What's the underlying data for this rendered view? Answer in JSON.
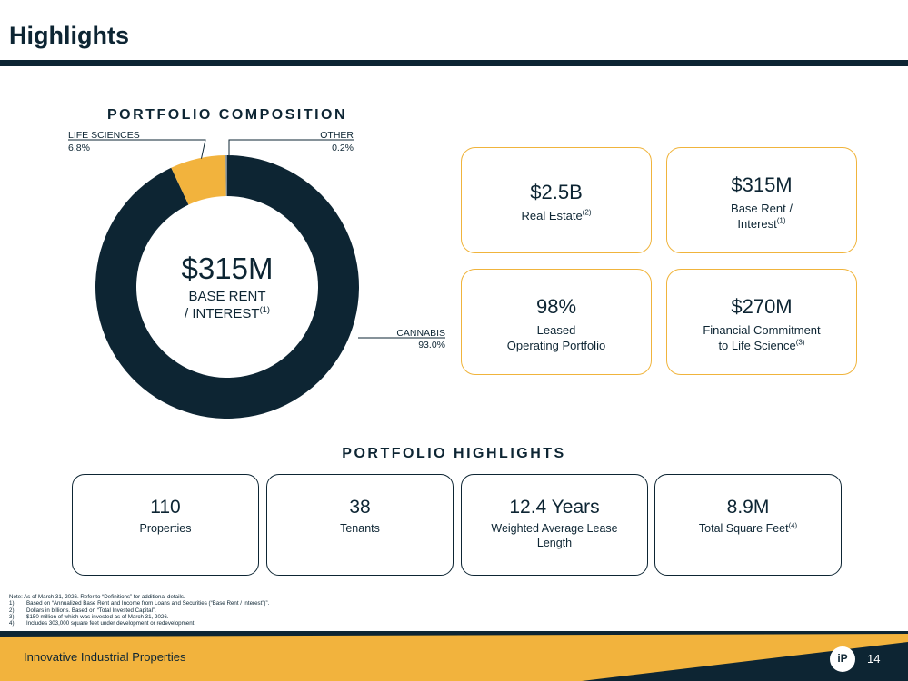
{
  "page": {
    "title": "Highlights"
  },
  "composition": {
    "heading": "PORTFOLIO COMPOSITION",
    "center_value": "$315M",
    "center_line1": "BASE RENT",
    "center_line2": "/ INTEREST",
    "center_sup": "(1)"
  },
  "chart_data": {
    "type": "pie",
    "style": "donut",
    "categories": [
      "CANNABIS",
      "LIFE SCIENCES",
      "OTHER"
    ],
    "values": [
      93.0,
      6.8,
      0.2
    ],
    "labels": [
      "93.0%",
      "6.8%",
      "0.2%"
    ],
    "colors": [
      "#0d2533",
      "#f2b33d",
      "#7a8a95"
    ]
  },
  "stats": [
    {
      "value": "$2.5B",
      "line1": "Real Estate",
      "line2": "",
      "sup": "(2)"
    },
    {
      "value": "$315M",
      "line1": "Base Rent /",
      "line2": "Interest",
      "sup": "(1)"
    },
    {
      "value": "98%",
      "line1": "Leased",
      "line2": "Operating Portfolio",
      "sup": ""
    },
    {
      "value": "$270M",
      "line1": "Financial Commitment",
      "line2": "to Life Science",
      "sup": "(3)"
    }
  ],
  "highlights": {
    "heading": "PORTFOLIO HIGHLIGHTS",
    "items": [
      {
        "value": "110",
        "line1": "Properties",
        "line2": "",
        "sup": ""
      },
      {
        "value": "38",
        "line1": "Tenants",
        "line2": "",
        "sup": ""
      },
      {
        "value": "12.4 Years",
        "line1": "Weighted Average Lease",
        "line2": "Length",
        "sup": ""
      },
      {
        "value": "8.9M",
        "line1": "Total Square Feet",
        "line2": "",
        "sup": "(4)"
      }
    ]
  },
  "notes": {
    "intro": "Note: As of March 31, 2026. Refer to “Definitions” for additional details.",
    "items": [
      {
        "num": "1)",
        "text": "Based on “Annualized Base Rent and Income from Loans and Securities (“Base Rent / Interest”)”."
      },
      {
        "num": "2)",
        "text": "Dollars in billions. Based on “Total Invested Capital”."
      },
      {
        "num": "3)",
        "text": "$150 million of which was invested as of March 31, 2026."
      },
      {
        "num": "4)",
        "text": "Includes 303,000 square feet under development or redevelopment."
      }
    ]
  },
  "footer": {
    "company": "Innovative Industrial Properties",
    "page_number": "14",
    "logo_text": "iP",
    "colors": {
      "navy": "#0d2533",
      "gold": "#f2b33d"
    }
  }
}
